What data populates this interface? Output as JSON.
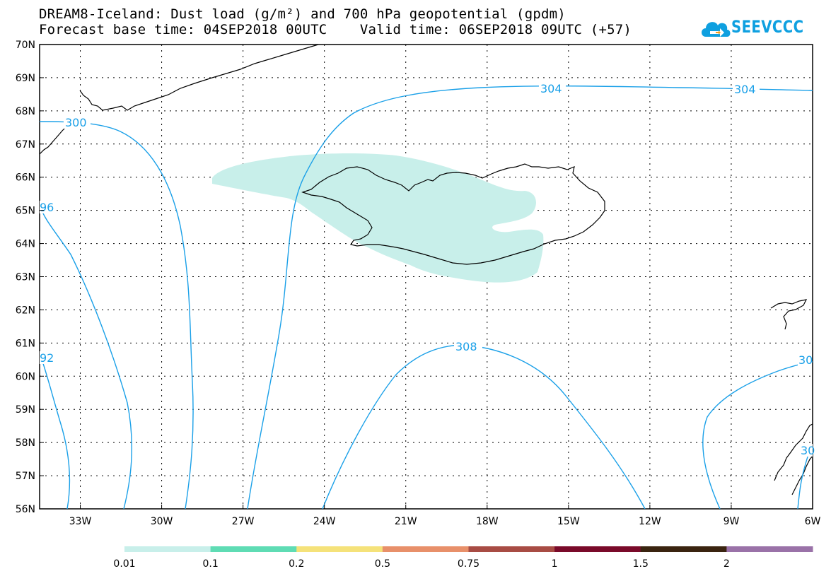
{
  "title": {
    "line1": "DREAM8-Iceland: Dust load (g/m²) and 700 hPa geopotential (gpdm)",
    "line2": "Forecast base time: 04SEP2018 00UTC    Valid time: 06SEP2018 09UTC (+57)"
  },
  "logo": {
    "text": "SEEVCCC",
    "icon": "cloud-arrow-icon",
    "color": "#0fa0e0"
  },
  "map": {
    "lat_labels": [
      "70N",
      "69N",
      "68N",
      "67N",
      "66N",
      "65N",
      "64N",
      "63N",
      "62N",
      "61N",
      "60N",
      "59N",
      "58N",
      "57N",
      "56N"
    ],
    "lon_labels": [
      "33W",
      "30W",
      "27W",
      "24W",
      "21W",
      "18W",
      "15W",
      "12W",
      "9W",
      "6W"
    ],
    "lat_range": [
      56,
      70
    ],
    "lon_range": [
      -34.5,
      -6
    ],
    "gridlines": "dotted",
    "contour_color": "#1aa0e8",
    "contour_labels": [
      "304",
      "304",
      "300",
      "96",
      "308",
      "92",
      "30",
      "30"
    ],
    "dust_color": "#c8efea"
  },
  "colorbar": {
    "labels": [
      "0.01",
      "0.1",
      "0.2",
      "0.5",
      "0.75",
      "1",
      "1.5",
      "2"
    ],
    "colors": [
      "#c8efea",
      "#5fdcb4",
      "#f5e27a",
      "#e8906a",
      "#a84c44",
      "#7a0a2a",
      "#3a2410",
      "#9a72a8"
    ]
  }
}
